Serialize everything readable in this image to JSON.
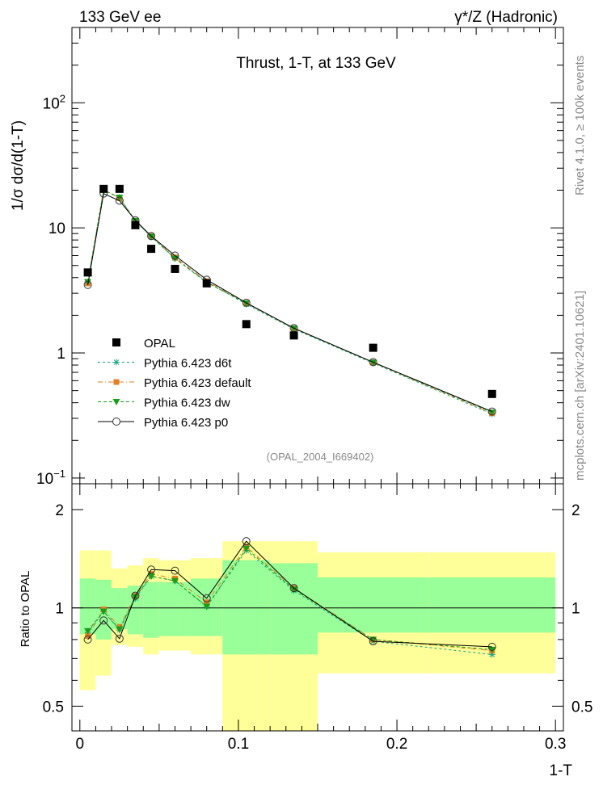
{
  "header": {
    "left": "133 GeV ee",
    "right": "γ*/Z (Hadronic)"
  },
  "side_text": {
    "rivet": "Rivet 4.1.0, ≥ 100k events",
    "site": "mcplots.cern.ch [arXiv:2401.10621]"
  },
  "chart_data": [
    {
      "type": "line",
      "panel": "main",
      "title": "Thrust, 1-T, at 133 GeV",
      "ylabel": "1/σ  dσ/d(1-T)",
      "xlabel": "1-T",
      "yscale": "log",
      "xlim": [
        -0.005,
        0.305
      ],
      "ylim": [
        0.09,
        400
      ],
      "y_ticks": [
        {
          "v": 0.1,
          "label": "10^-1"
        },
        {
          "v": 1,
          "label": "1"
        },
        {
          "v": 10,
          "label": "10"
        },
        {
          "v": 100,
          "label": "10^2"
        }
      ],
      "x_ticks": [
        0,
        0.1,
        0.2,
        0.3
      ],
      "watermark": "(OPAL_2004_I669402)",
      "data_series": {
        "name": "OPAL",
        "x": [
          0.005,
          0.015,
          0.025,
          0.035,
          0.045,
          0.06,
          0.08,
          0.105,
          0.135,
          0.185,
          0.26
        ],
        "y": [
          4.4,
          20.5,
          20.5,
          10.5,
          6.8,
          4.7,
          3.6,
          1.7,
          1.38,
          1.1,
          0.47
        ]
      },
      "series": [
        {
          "name": "Pythia 6.423 d6t",
          "color": "#17a589",
          "marker": "star",
          "dash": "3,3",
          "values": [
            3.7,
            20.0,
            17.5,
            11.3,
            8.5,
            5.7,
            3.7,
            2.45,
            1.55,
            0.83,
            0.325
          ]
        },
        {
          "name": "Pythia 6.423 default",
          "color": "#e67e22",
          "marker": "square",
          "dash": "6,3,1,3",
          "values": [
            3.6,
            20.3,
            17.3,
            11.4,
            8.6,
            5.8,
            3.75,
            2.5,
            1.57,
            0.84,
            0.33
          ]
        },
        {
          "name": "Pythia 6.423 dw",
          "color": "#1a9e1a",
          "marker": "triangle",
          "dash": "4,3",
          "values": [
            3.7,
            20.0,
            17.5,
            11.4,
            8.5,
            5.7,
            3.65,
            2.5,
            1.57,
            0.84,
            0.335
          ]
        },
        {
          "name": "Pythia 6.423 p0",
          "color": "#000000",
          "marker": "circle",
          "dash": "",
          "values": [
            3.5,
            18.8,
            16.5,
            11.5,
            8.6,
            6.0,
            3.85,
            2.52,
            1.58,
            0.845,
            0.34
          ]
        }
      ]
    },
    {
      "type": "line",
      "panel": "ratio",
      "ylabel": "Ratio to OPAL",
      "xlabel": "1-T",
      "yscale": "log",
      "ylim": [
        0.42,
        2.4
      ],
      "y_ticks": [
        {
          "v": 0.5,
          "label": "0.5"
        },
        {
          "v": 1,
          "label": "1"
        },
        {
          "v": 2,
          "label": "2"
        }
      ],
      "x_ticks": [
        0,
        0.1,
        0.2,
        0.3
      ],
      "x_tick_labels": [
        "0",
        "0.1",
        "0.2",
        "0.3"
      ],
      "bins": [
        [
          0.0,
          0.01
        ],
        [
          0.01,
          0.02
        ],
        [
          0.02,
          0.03
        ],
        [
          0.03,
          0.04
        ],
        [
          0.04,
          0.05
        ],
        [
          0.05,
          0.07
        ],
        [
          0.07,
          0.09
        ],
        [
          0.09,
          0.12
        ],
        [
          0.12,
          0.15
        ],
        [
          0.15,
          0.22
        ],
        [
          0.22,
          0.3
        ]
      ],
      "band_inner": [
        [
          0.83,
          1.23
        ],
        [
          0.8,
          1.22
        ],
        [
          0.86,
          1.15
        ],
        [
          0.83,
          1.17
        ],
        [
          0.81,
          1.2
        ],
        [
          0.82,
          1.2
        ],
        [
          0.82,
          1.23
        ],
        [
          0.72,
          1.4
        ],
        [
          0.72,
          1.37
        ],
        [
          0.84,
          1.24
        ],
        [
          0.84,
          1.24
        ]
      ],
      "band_outer": [
        [
          0.56,
          1.5
        ],
        [
          0.62,
          1.5
        ],
        [
          0.77,
          1.32
        ],
        [
          0.76,
          1.35
        ],
        [
          0.72,
          1.42
        ],
        [
          0.74,
          1.4
        ],
        [
          0.72,
          1.42
        ],
        [
          0.38,
          1.6
        ],
        [
          0.38,
          1.6
        ],
        [
          0.63,
          1.48
        ],
        [
          0.63,
          1.48
        ]
      ],
      "x": [
        0.005,
        0.015,
        0.025,
        0.035,
        0.045,
        0.06,
        0.08,
        0.105,
        0.135,
        0.185,
        0.26
      ],
      "series": [
        {
          "name": "Pythia 6.423 d6t",
          "values": [
            0.84,
            0.975,
            0.855,
            1.07,
            1.25,
            1.21,
            1.01,
            1.5,
            1.13,
            0.79,
            0.72
          ]
        },
        {
          "name": "Pythia 6.423 default",
          "values": [
            0.82,
            0.99,
            0.875,
            1.09,
            1.27,
            1.23,
            1.04,
            1.54,
            1.15,
            0.8,
            0.74
          ]
        },
        {
          "name": "Pythia 6.423 dw",
          "values": [
            0.85,
            0.975,
            0.86,
            1.08,
            1.25,
            1.21,
            1.01,
            1.52,
            1.14,
            0.8,
            0.745
          ]
        },
        {
          "name": "Pythia 6.423 p0",
          "values": [
            0.8,
            0.915,
            0.805,
            1.09,
            1.31,
            1.3,
            1.07,
            1.6,
            1.15,
            0.79,
            0.76
          ]
        }
      ]
    }
  ]
}
